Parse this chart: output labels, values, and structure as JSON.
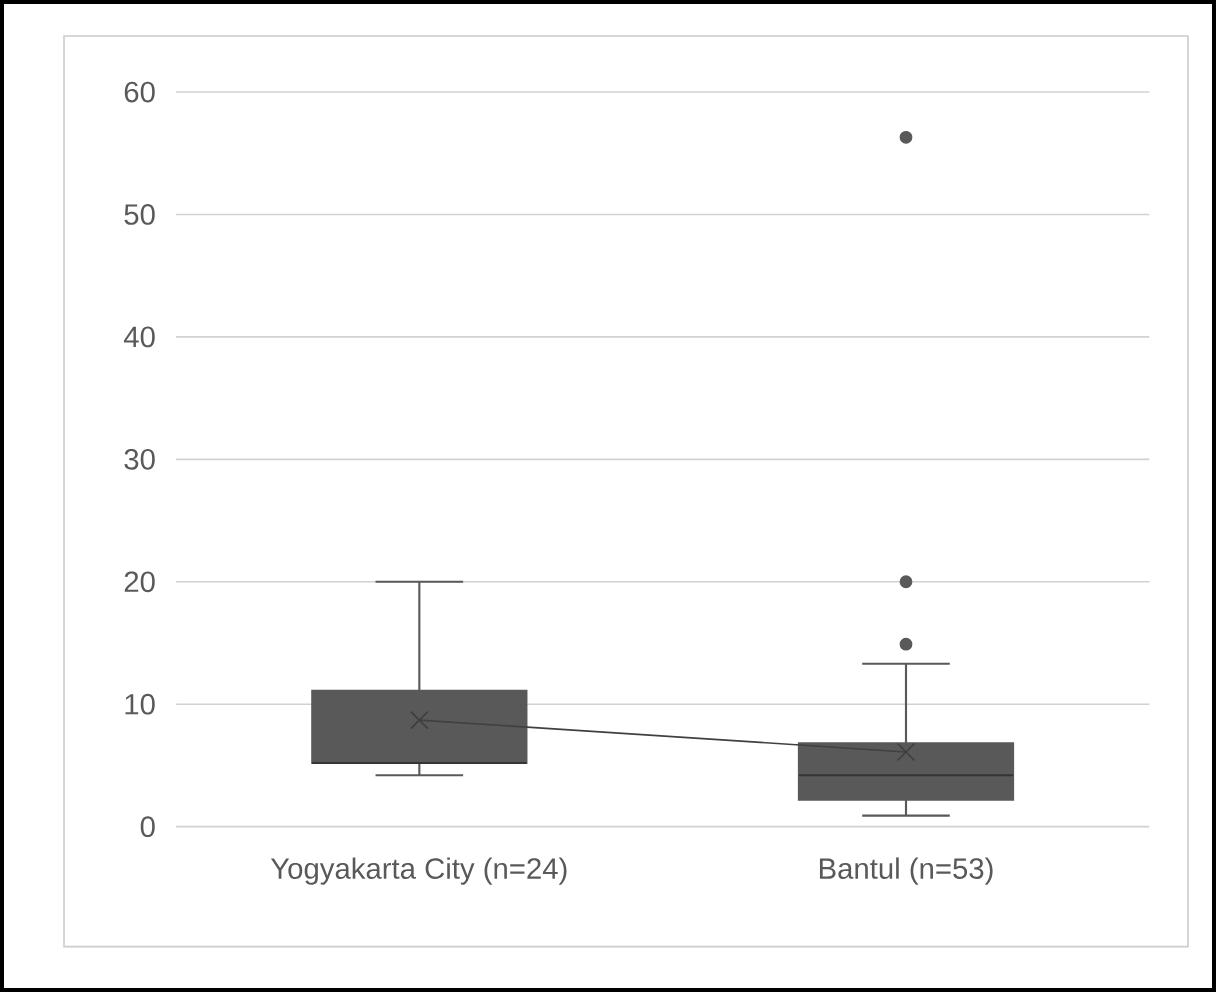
{
  "chart_data": {
    "type": "box",
    "categories": [
      "Yogyakarta City (n=24)",
      "Bantul (n=53)"
    ],
    "boxes": [
      {
        "low": 4.2,
        "q1": 5.2,
        "median": 5.2,
        "q3": 11.1,
        "high": 20.0,
        "mean": 8.7
      },
      {
        "low": 0.9,
        "q1": 2.2,
        "median": 4.2,
        "q3": 6.8,
        "high": 13.3,
        "mean": 6.1,
        "outliers": [
          14.9,
          20.0,
          56.3
        ]
      }
    ],
    "series": [
      {
        "type": "line",
        "values": [
          8.7,
          6.1
        ],
        "color": "#404040",
        "marker": "none"
      }
    ],
    "color": "#595959",
    "ylim": [
      0,
      60
    ],
    "yticks": [
      0,
      10,
      20,
      30,
      40,
      50,
      60
    ],
    "grid": "y"
  }
}
